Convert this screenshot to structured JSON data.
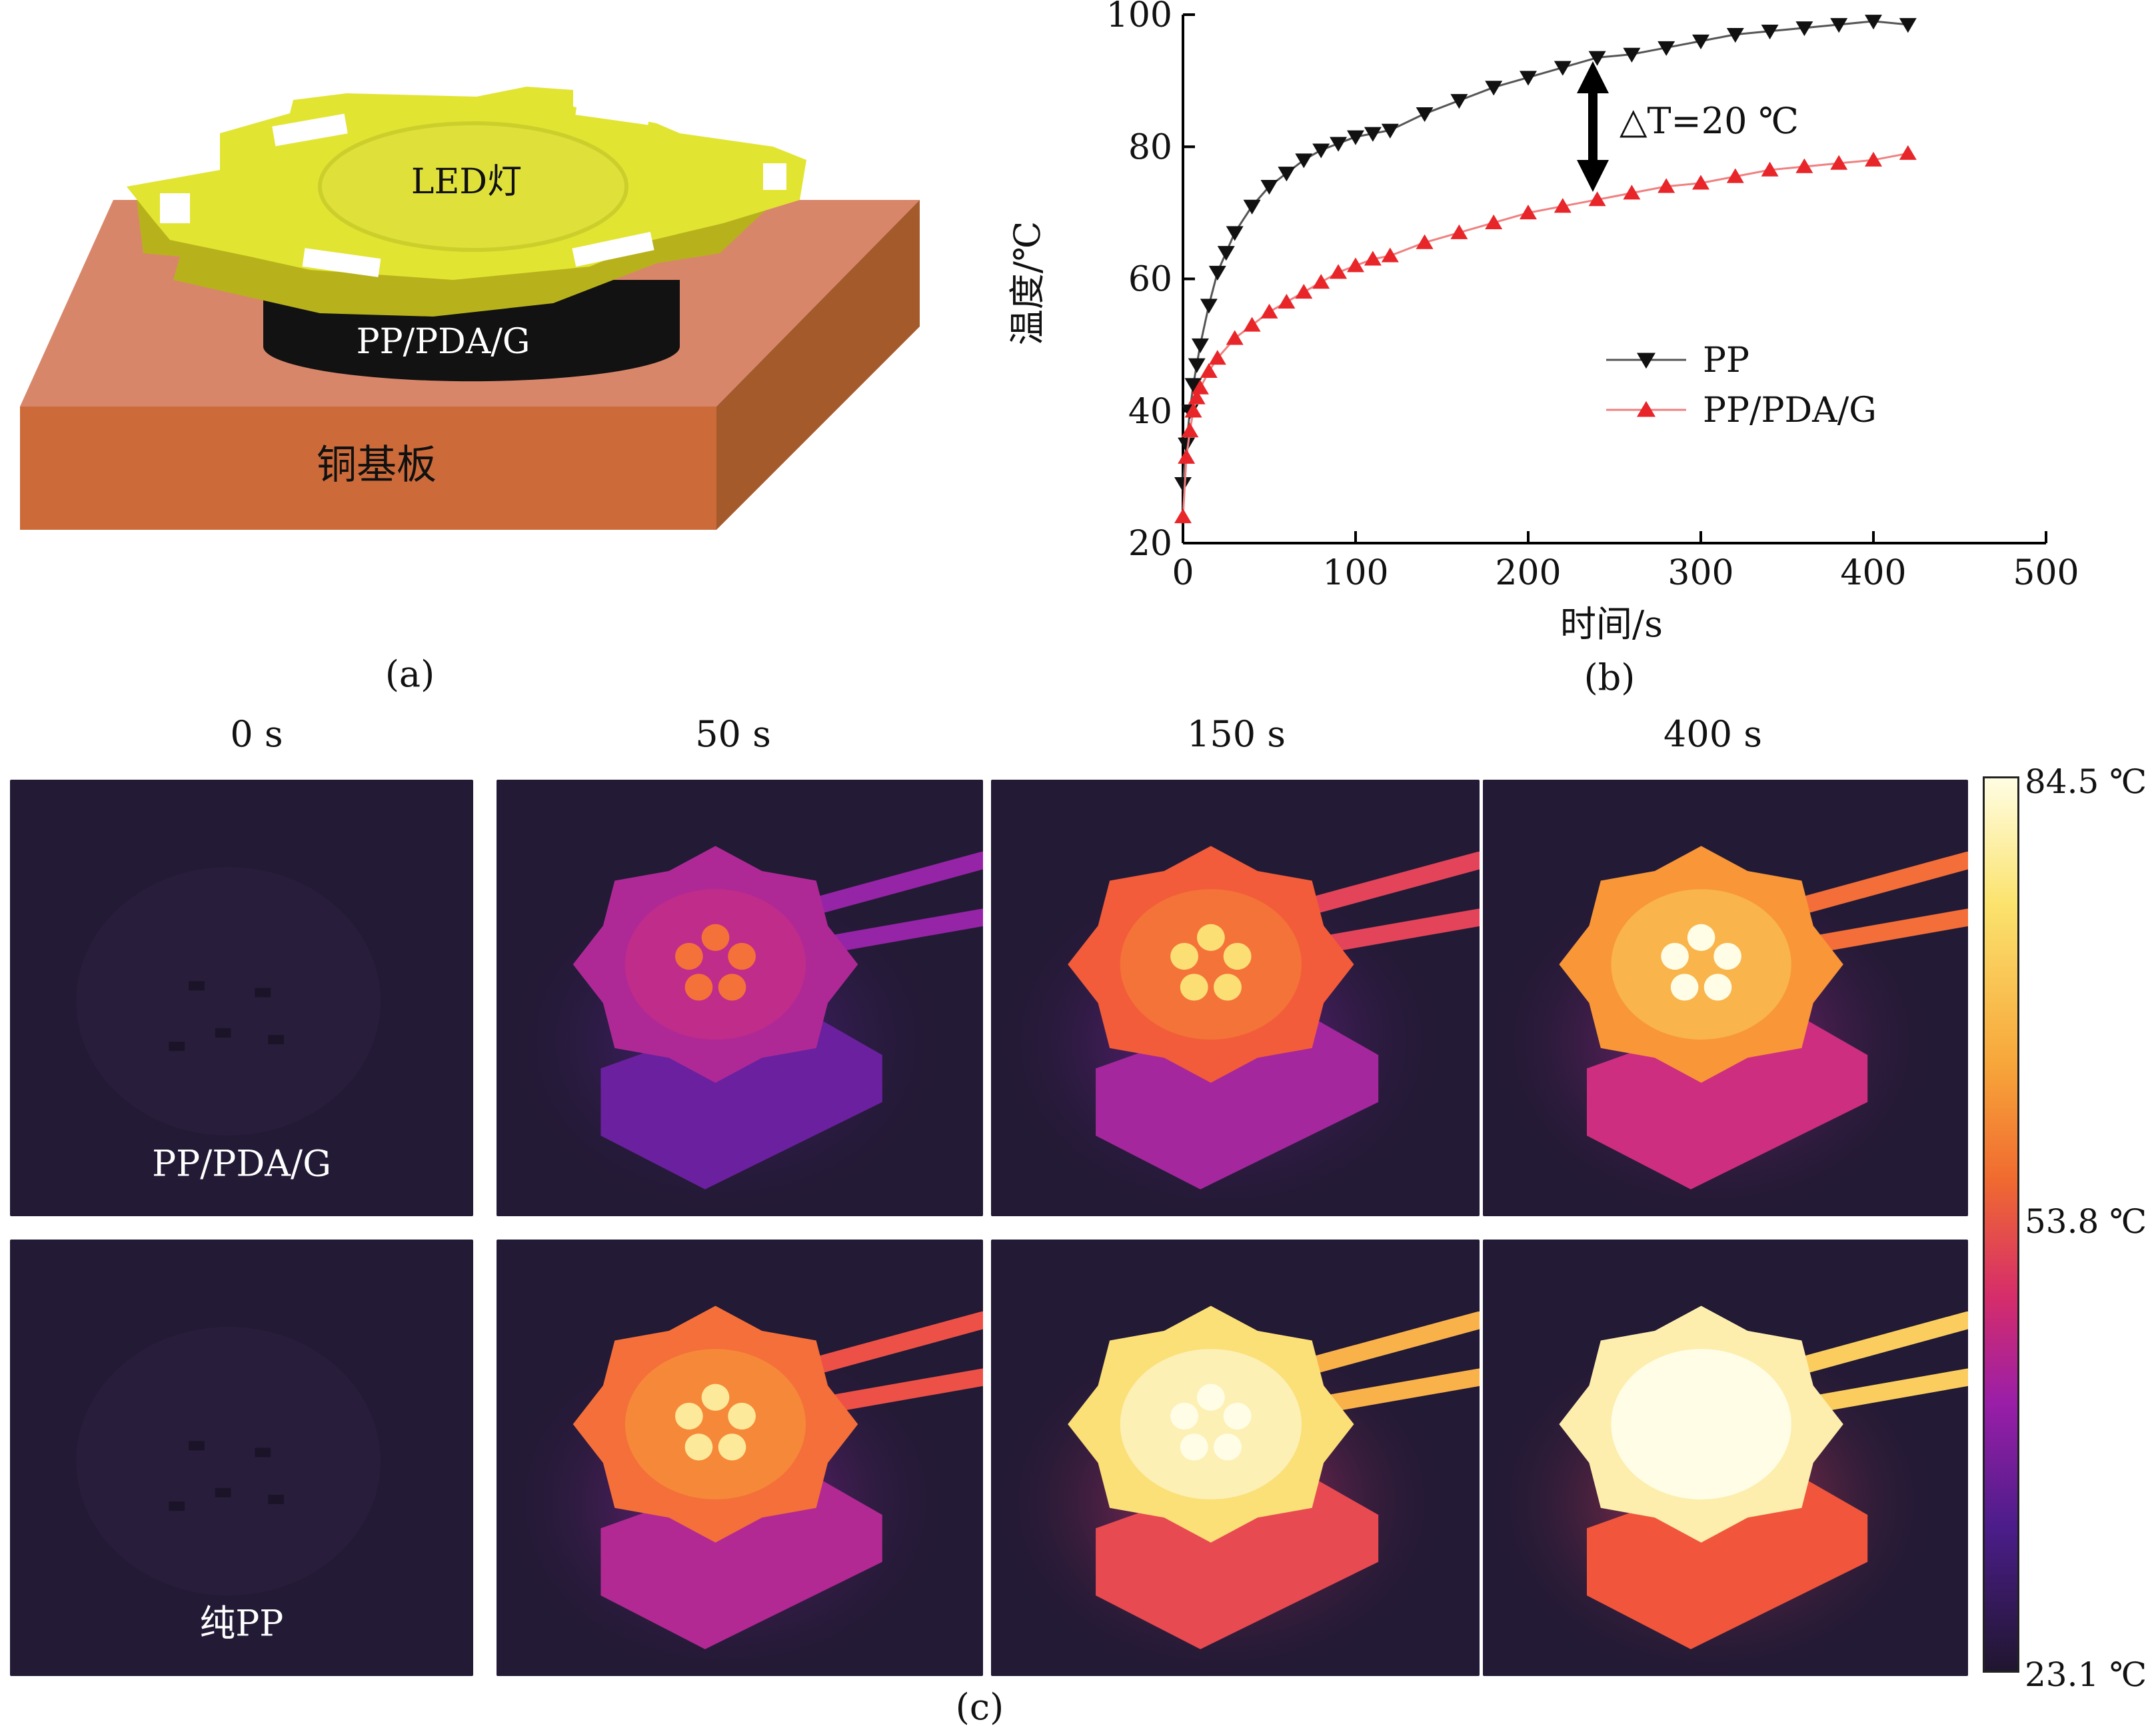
{
  "panel_a": {
    "label": "(a)",
    "led_label": "LED灯",
    "material_label": "PP/PDA/G",
    "base_label": "铜基板"
  },
  "panel_b": {
    "label": "(b)",
    "annotation": "△T=20 ℃"
  },
  "chart_data": {
    "type": "line",
    "title": "",
    "xlabel": "时间/s",
    "ylabel": "温度/℃",
    "xlim": [
      0,
      500
    ],
    "ylim": [
      20,
      100
    ],
    "xticks": [
      0,
      100,
      200,
      300,
      400,
      500
    ],
    "yticks": [
      20,
      40,
      60,
      80,
      100
    ],
    "legend_position": "center-right",
    "series": [
      {
        "name": "PP",
        "marker": "triangle-down",
        "color": "#111111",
        "x": [
          0,
          2,
          4,
          6,
          8,
          10,
          15,
          20,
          25,
          30,
          40,
          50,
          60,
          70,
          80,
          90,
          100,
          110,
          120,
          140,
          160,
          180,
          200,
          220,
          240,
          260,
          280,
          300,
          320,
          340,
          360,
          380,
          400,
          420
        ],
        "y": [
          29,
          35,
          40,
          44,
          47,
          50,
          56,
          61,
          64,
          67,
          71,
          74,
          76,
          78,
          79.5,
          80.5,
          81.5,
          82,
          82.5,
          85,
          87,
          89,
          90.5,
          92,
          93.5,
          94,
          95,
          96,
          97,
          97.5,
          98,
          98.5,
          99,
          98.5
        ]
      },
      {
        "name": "PP/PDA/G",
        "marker": "triangle-up",
        "color": "#e8262a",
        "x": [
          0,
          2,
          4,
          6,
          8,
          10,
          15,
          20,
          30,
          40,
          50,
          60,
          70,
          80,
          90,
          100,
          110,
          120,
          140,
          160,
          180,
          200,
          220,
          240,
          260,
          280,
          300,
          320,
          340,
          360,
          380,
          400,
          420
        ],
        "y": [
          24,
          33,
          37,
          40,
          42,
          43.5,
          46,
          48,
          51,
          53,
          55,
          56.5,
          58,
          59.5,
          61,
          62,
          63,
          63.5,
          65.5,
          67,
          68.5,
          70,
          71,
          72,
          73,
          74,
          74.5,
          75.5,
          76.5,
          77,
          77.5,
          78,
          79
        ]
      }
    ]
  },
  "panel_c": {
    "label": "(c)",
    "time_labels": [
      "0 s",
      "50 s",
      "150 s",
      "400 s"
    ],
    "row_labels": [
      "PP/PDA/G",
      "纯PP"
    ],
    "colorbar_labels": [
      "84.5 ℃",
      "53.8 ℃",
      "23.1 ℃"
    ],
    "colorbar_values": [
      84.5,
      53.8,
      23.1
    ]
  }
}
